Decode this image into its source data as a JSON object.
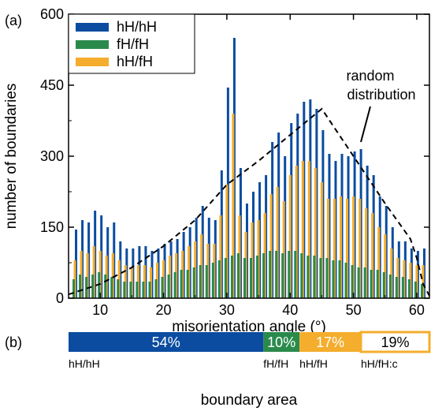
{
  "chart_data": [
    {
      "type": "bar",
      "panel_label": "(a)",
      "xlabel": "misorientation angle (°)",
      "ylabel": "number of boundaries",
      "xlim": [
        5,
        62
      ],
      "ylim": [
        0,
        600
      ],
      "xticks": [
        "10",
        "20",
        "30",
        "40",
        "50",
        "60"
      ],
      "yticks": [
        "0",
        "150",
        "300",
        "450",
        "600"
      ],
      "legend_position": "top-left",
      "x": [
        6,
        7,
        8,
        9,
        10,
        11,
        12,
        13,
        14,
        15,
        16,
        17,
        18,
        19,
        20,
        21,
        22,
        23,
        24,
        25,
        26,
        27,
        28,
        29,
        30,
        31,
        32,
        33,
        34,
        35,
        36,
        37,
        38,
        39,
        40,
        41,
        42,
        43,
        44,
        45,
        46,
        47,
        48,
        49,
        50,
        51,
        52,
        53,
        54,
        55,
        56,
        57,
        58,
        59,
        60,
        61
      ],
      "series": [
        {
          "name": "hH/hH",
          "color": "#0b4ca0",
          "values": [
            145,
            165,
            160,
            185,
            175,
            150,
            160,
            120,
            105,
            105,
            110,
            110,
            100,
            105,
            115,
            120,
            125,
            140,
            150,
            170,
            195,
            170,
            165,
            270,
            445,
            550,
            275,
            200,
            225,
            245,
            260,
            330,
            350,
            300,
            370,
            390,
            415,
            420,
            400,
            355,
            305,
            290,
            305,
            300,
            310,
            315,
            280,
            260,
            215,
            195,
            150,
            120,
            120,
            105,
            100,
            105
          ]
        },
        {
          "name": "fH/fH",
          "color": "#2a8a4c",
          "values": [
            40,
            50,
            45,
            50,
            55,
            50,
            45,
            40,
            35,
            35,
            35,
            35,
            35,
            40,
            45,
            50,
            55,
            60,
            60,
            65,
            70,
            70,
            75,
            80,
            85,
            90,
            95,
            85,
            85,
            90,
            95,
            100,
            100,
            95,
            100,
            100,
            95,
            90,
            90,
            85,
            85,
            80,
            80,
            75,
            70,
            65,
            65,
            60,
            60,
            55,
            50,
            45,
            45,
            40,
            35,
            30
          ]
        },
        {
          "name": "hH/fH",
          "color": "#f4ad2c",
          "values": [
            80,
            100,
            95,
            110,
            100,
            90,
            95,
            80,
            70,
            65,
            70,
            70,
            65,
            75,
            80,
            90,
            95,
            100,
            110,
            120,
            135,
            115,
            115,
            175,
            240,
            390,
            175,
            140,
            160,
            165,
            180,
            220,
            235,
            205,
            260,
            280,
            290,
            290,
            275,
            245,
            210,
            210,
            215,
            210,
            215,
            210,
            190,
            180,
            150,
            135,
            105,
            85,
            80,
            75,
            70,
            70
          ]
        }
      ],
      "annotations": [
        {
          "text_lines": [
            "random",
            "distribution"
          ],
          "style": "dashed-curve"
        }
      ],
      "random_distribution_curve": {
        "x": [
          5,
          10,
          15,
          20,
          25,
          30,
          35,
          40,
          45,
          50,
          55,
          59,
          60,
          61,
          62
        ],
        "y": [
          8,
          30,
          65,
          110,
          165,
          240,
          290,
          345,
          400,
          300,
          200,
          125,
          85,
          30,
          5
        ]
      }
    },
    {
      "type": "bar",
      "orientation": "horizontal-stacked",
      "panel_label": "(b)",
      "xlabel": "boundary area",
      "segments": [
        {
          "label": "hH/hH",
          "percent_label": "54%",
          "value": 54,
          "color": "#0b4ca0"
        },
        {
          "label": "fH/fH",
          "percent_label": "10%",
          "value": 10,
          "color": "#2a8a4c"
        },
        {
          "label": "hH/fH",
          "percent_label": "17%",
          "value": 17,
          "color": "#f4ad2c"
        },
        {
          "label": "hH/fH:c",
          "percent_label": "19%",
          "value": 19,
          "color": "#ffffff"
        }
      ]
    }
  ]
}
